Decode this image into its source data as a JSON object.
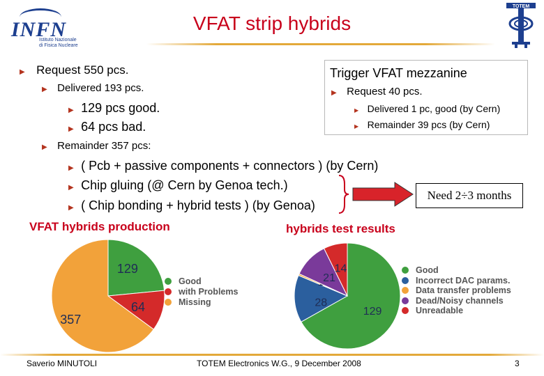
{
  "header": {
    "title": "VFAT strip hybrids",
    "infn_logo_text": "INFN",
    "infn_sub": [
      "Istituto Nazionale",
      "di Fisica Nucleare"
    ],
    "totem_logo_text": "TOTEM"
  },
  "left": {
    "request": "Request 550 pcs.",
    "delivered": "Delivered 193 pcs.",
    "good": "129 pcs good.",
    "bad": "64 pcs bad.",
    "remainder": "Remainder 357 pcs:",
    "steps": [
      "( Pcb + passive components + connectors ) (by Cern)",
      "Chip gluing (@ Cern by Genoa tech.)",
      "( Chip bonding + hybrid tests ) (by Genoa)"
    ],
    "need": "Need 2÷3 months"
  },
  "trigger": {
    "title": "Trigger VFAT mezzanine",
    "request": "Request 40 pcs.",
    "delivered": "Delivered 1 pc, good (by Cern)",
    "remainder": "Remainder 39 pcs (by Cern)"
  },
  "production": {
    "title": "VFAT hybrids production",
    "legend": [
      "Good",
      "with Problems",
      "Missing"
    ]
  },
  "test": {
    "title": "hybrids test results",
    "legend": [
      "Good",
      "Incorrect DAC params.",
      "Data transfer problems",
      "Dead/Noisy channels",
      "Unreadable"
    ]
  },
  "footer": {
    "author": "Saverio MINUTOLI",
    "event": "TOTEM Electronics W.G., 9 December 2008",
    "page": "3"
  },
  "colors": {
    "good": "#3f9f3f",
    "problems": "#d42a2a",
    "missing": "#f2a23a",
    "dac": "#2b5f9e",
    "transfer": "#f2a23a",
    "dead": "#7a3a9a",
    "unreadable": "#d42a2a",
    "title_red": "#c8001b"
  },
  "chart_data": [
    {
      "type": "pie",
      "title": "VFAT hybrids production",
      "labels": [
        "Good",
        "with Problems",
        "Missing"
      ],
      "values": [
        129,
        64,
        357
      ],
      "colors": [
        "#3f9f3f",
        "#d42a2a",
        "#f2a23a"
      ]
    },
    {
      "type": "pie",
      "title": "hybrids test results",
      "labels": [
        "Good",
        "Incorrect DAC params.",
        "Data transfer problems",
        "Dead/Noisy channels",
        "Unreadable"
      ],
      "values": [
        129,
        28,
        1,
        21,
        14
      ],
      "colors": [
        "#3f9f3f",
        "#2b5f9e",
        "#f2a23a",
        "#7a3a9a",
        "#d42a2a"
      ]
    }
  ]
}
